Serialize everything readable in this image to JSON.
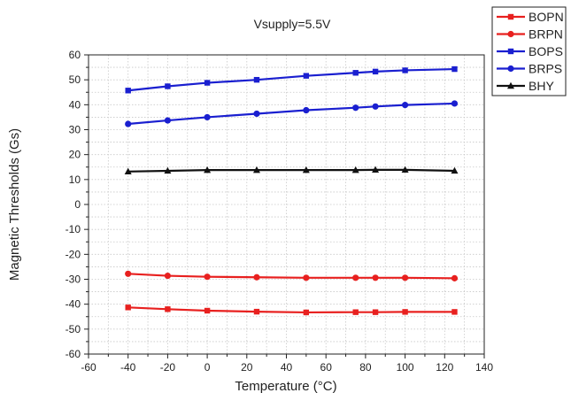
{
  "chart_data": {
    "type": "line",
    "title": "Vsupply=5.5V",
    "xlabel": "Temperature (°C)",
    "ylabel": "Magnetic Thresholds (Gs)",
    "xlim": [
      -60,
      140
    ],
    "ylim": [
      -60,
      60
    ],
    "xticks": [
      -60,
      -40,
      -20,
      0,
      20,
      40,
      60,
      80,
      100,
      120,
      140
    ],
    "yticks": [
      -60,
      -50,
      -40,
      -30,
      -20,
      -10,
      0,
      10,
      20,
      30,
      40,
      50,
      60
    ],
    "grid": true,
    "legend_position": "top-right, outside plot",
    "x": [
      -40,
      -20,
      0,
      25,
      50,
      75,
      85,
      100,
      125
    ],
    "series": [
      {
        "name": "BOPN",
        "color": "#e8201f",
        "marker": "square",
        "values": [
          -41.3,
          -42.0,
          -42.6,
          -43.0,
          -43.3,
          -43.2,
          -43.2,
          -43.1,
          -43.1
        ]
      },
      {
        "name": "BRPN",
        "color": "#e8201f",
        "marker": "circle",
        "values": [
          -27.8,
          -28.6,
          -29.0,
          -29.2,
          -29.4,
          -29.4,
          -29.4,
          -29.4,
          -29.6
        ]
      },
      {
        "name": "BOPS",
        "color": "#1a1fd0",
        "marker": "square",
        "values": [
          45.7,
          47.4,
          48.8,
          50.0,
          51.6,
          52.8,
          53.3,
          53.8,
          54.3
        ]
      },
      {
        "name": "BRPS",
        "color": "#1a1fd0",
        "marker": "circle",
        "values": [
          32.3,
          33.7,
          35.0,
          36.4,
          37.8,
          38.8,
          39.3,
          39.9,
          40.5
        ]
      },
      {
        "name": "BHY",
        "color": "#111111",
        "marker": "triangle",
        "values": [
          13.2,
          13.5,
          13.8,
          13.8,
          13.8,
          13.8,
          13.9,
          13.9,
          13.5
        ]
      }
    ]
  }
}
